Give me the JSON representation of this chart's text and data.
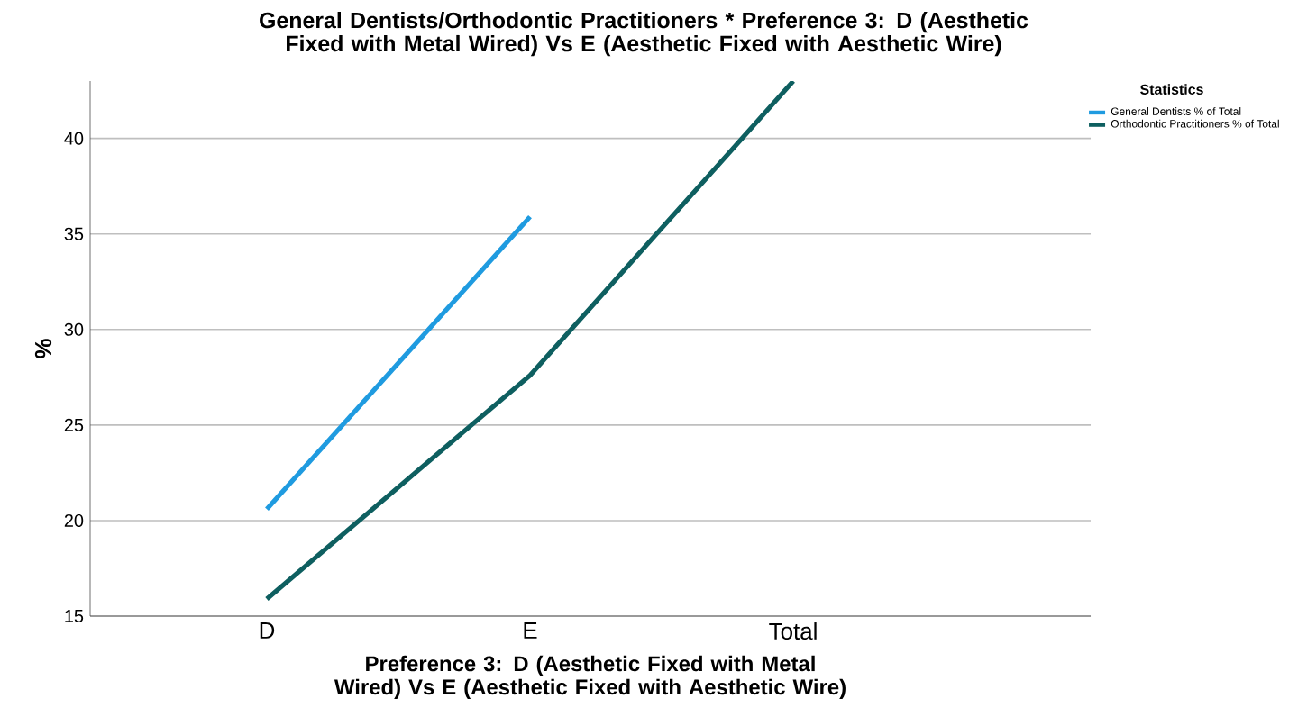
{
  "chart_data": {
    "type": "line",
    "title": "General Dentists/Orthodontic Practitioners * Preference 3: D (Aesthetic Fixed with Metal Wired) Vs E (Aesthetic Fixed with Aesthetic Wire)",
    "xlabel": "Preference 3: D (Aesthetic Fixed with Metal Wired) Vs E (Aesthetic Fixed with Aesthetic Wire)",
    "ylabel": "%",
    "categories": [
      "D",
      "E",
      "Total"
    ],
    "series": [
      {
        "name": "General Dentists % of Total",
        "color": "#1f9be0",
        "values": [
          20.6,
          35.9,
          null
        ]
      },
      {
        "name": "Orthodontic Practitioners % of Total",
        "color": "#0e5f60",
        "values": [
          15.9,
          27.6,
          43.0
        ]
      }
    ],
    "ylim": [
      15,
      43
    ],
    "yticks": [
      15,
      20,
      25,
      30,
      35,
      40
    ],
    "grid": "y",
    "legend": "top right",
    "legend_title": "Statistics",
    "marker": "none",
    "line_style": "solid"
  }
}
